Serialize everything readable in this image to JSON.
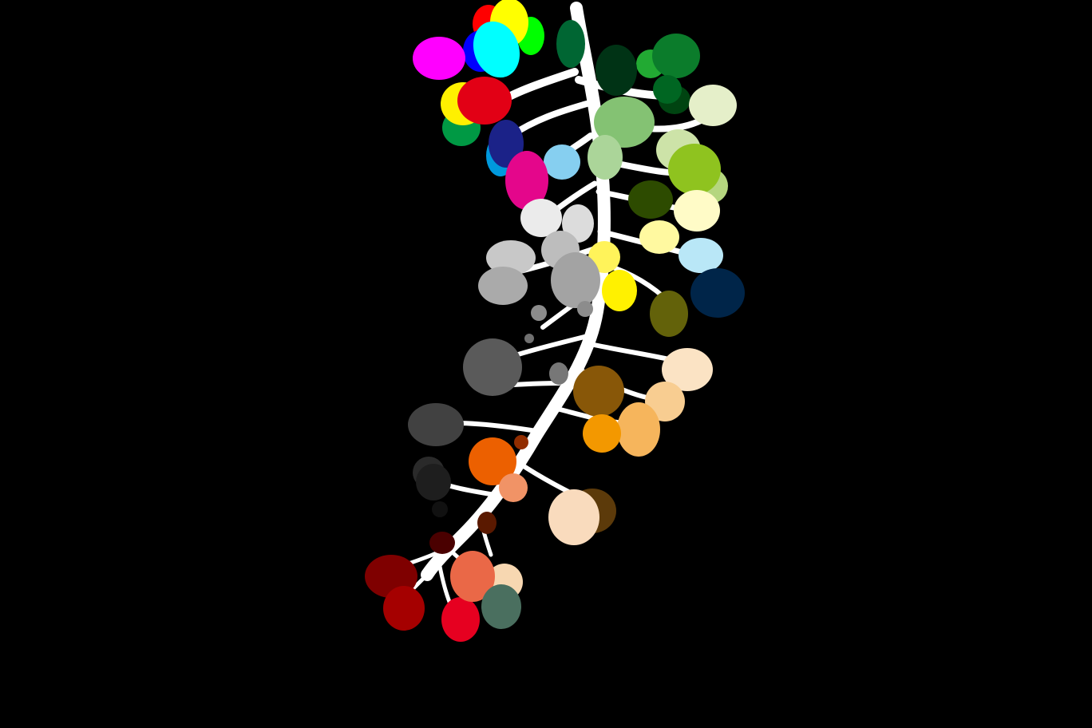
{
  "scene": {
    "background": "#000000",
    "stem_color": "#ffffff",
    "description_visible_text": ""
  },
  "palette": {
    "berries": [
      "#ff0000",
      "#ffff00",
      "#00ff00",
      "#0000ff",
      "#00ffff",
      "#ff00ff",
      "#006633",
      "#003315",
      "#0b7c2b",
      "#ff0000",
      "#e20015",
      "#1b2288",
      "#0099dd",
      "#00994d",
      "#e4068b",
      "#86cff0",
      "#84c273",
      "#abd599",
      "#e5efc9",
      "#8fc31f",
      "#2d4b00",
      "#fffbc7",
      "#fff9a0",
      "#fff100",
      "#b9e7f7",
      "#002549",
      "#63620a",
      "#ebebeb",
      "#dcdcdc",
      "#c8c8c8",
      "#bdbdbd",
      "#aaaaaa",
      "#a3a3a3",
      "#5a5a5a",
      "#414141",
      "#1e1e1e",
      "#885708",
      "#fbe3c4",
      "#f8cd91",
      "#f6b55c",
      "#f39800",
      "#ec6000",
      "#f19366",
      "#f9dbbd",
      "#7f0000",
      "#a50000",
      "#e60020",
      "#ea6847",
      "#f7d7b1",
      "#4a6f5f",
      "#5c3a0a",
      "#5a1900",
      "#922d00",
      "#111111"
    ]
  }
}
